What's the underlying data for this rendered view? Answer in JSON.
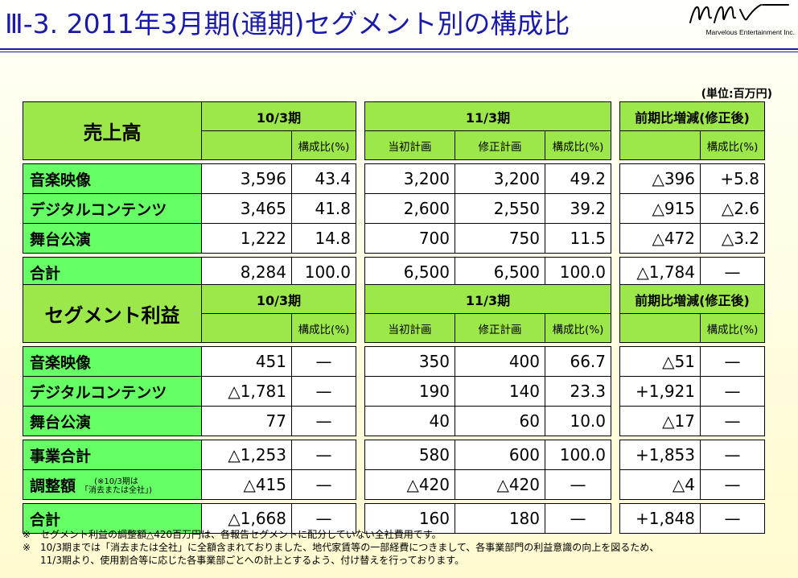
{
  "title": "Ⅲ-3. 2011年3月期(通期)セグメント別の構成比",
  "company": {
    "logo_text": "Marvelous Entertainment Inc."
  },
  "unit": "(単位:百万円)",
  "headers": {
    "fy10": "10/3期",
    "fy11": "11/3期",
    "yoy": "前期比増減(修正後)",
    "ratio": "構成比(%)",
    "initial_plan": "当初計画",
    "revised_plan": "修正計画"
  },
  "sales": {
    "title": "売上高",
    "rows": [
      {
        "name": "音楽映像",
        "fy10": "3,596",
        "fy10_ratio": "43.4",
        "initial": "3,200",
        "revised": "3,200",
        "ratio": "49.2",
        "diff": "△396",
        "diff_ratio": "+5.8"
      },
      {
        "name": "デジタルコンテンツ",
        "fy10": "3,465",
        "fy10_ratio": "41.8",
        "initial": "2,600",
        "revised": "2,550",
        "ratio": "39.2",
        "diff": "△915",
        "diff_ratio": "△2.6"
      },
      {
        "name": "舞台公演",
        "fy10": "1,222",
        "fy10_ratio": "14.8",
        "initial": "700",
        "revised": "750",
        "ratio": "11.5",
        "diff": "△472",
        "diff_ratio": "△3.2"
      }
    ],
    "total": {
      "name": "合計",
      "fy10": "8,284",
      "fy10_ratio": "100.0",
      "initial": "6,500",
      "revised": "6,500",
      "ratio": "100.0",
      "diff": "△1,784",
      "diff_ratio": "—"
    }
  },
  "profit": {
    "title": "セグメント利益",
    "rows": [
      {
        "name": "音楽映像",
        "fy10": "451",
        "fy10_ratio": "—",
        "initial": "350",
        "revised": "400",
        "ratio": "66.7",
        "diff": "△51",
        "diff_ratio": "—"
      },
      {
        "name": "デジタルコンテンツ",
        "fy10": "△1,781",
        "fy10_ratio": "—",
        "initial": "190",
        "revised": "140",
        "ratio": "23.3",
        "diff": "+1,921",
        "diff_ratio": "—"
      },
      {
        "name": "舞台公演",
        "fy10": "77",
        "fy10_ratio": "—",
        "initial": "40",
        "revised": "60",
        "ratio": "10.0",
        "diff": "△17",
        "diff_ratio": "—"
      }
    ],
    "subtotal": {
      "name": "事業合計",
      "fy10": "△1,253",
      "fy10_ratio": "—",
      "initial": "580",
      "revised": "600",
      "ratio": "100.0",
      "diff": "+1,853",
      "diff_ratio": "—"
    },
    "adjust": {
      "name": "調整額",
      "note1": "(※10/3期は",
      "note2": "「消去または全社」)",
      "fy10": "△415",
      "fy10_ratio": "—",
      "initial": "△420",
      "revised": "△420",
      "ratio": "—",
      "diff": "△4",
      "diff_ratio": "—"
    },
    "total": {
      "name": "合計",
      "fy10": "△1,668",
      "fy10_ratio": "—",
      "initial": "160",
      "revised": "180",
      "ratio": "—",
      "diff": "+1,848",
      "diff_ratio": "—"
    }
  },
  "notes": [
    {
      "mark": "※",
      "lines": [
        "セグメント利益の調整額△420百万円は、各報告セグメントに配分していない全社費用です。"
      ]
    },
    {
      "mark": "※",
      "lines": [
        "10/3期までは「消去または全社」に全額含まれておりました、地代家賃等の一部経費につきまして、各事業部門の利益意識の向上を図るため、",
        "11/3期より、使用割合等に応じた各事業部ごとへの計上とするよう、付け替えを行っております。"
      ]
    }
  ]
}
